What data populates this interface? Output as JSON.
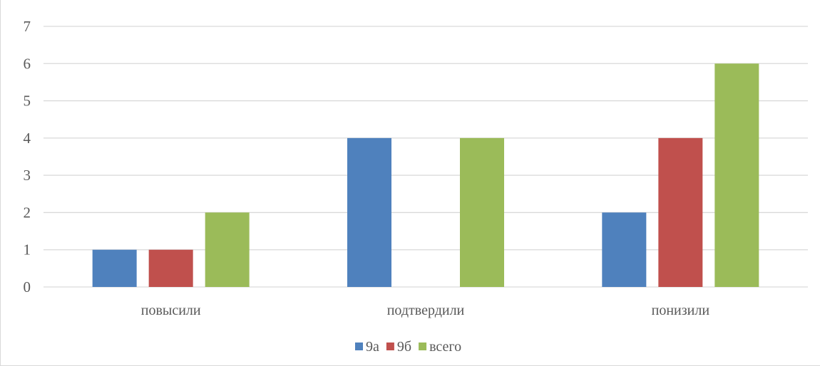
{
  "chart_data": {
    "type": "bar",
    "title": "",
    "xlabel": "",
    "ylabel": "",
    "categories": [
      "повысили",
      "подтвердили",
      "понизили"
    ],
    "series": [
      {
        "name": "9а",
        "values": [
          1,
          4,
          2
        ],
        "color": "#4f81bd"
      },
      {
        "name": "9б",
        "values": [
          1,
          0,
          4
        ],
        "color": "#c0504d"
      },
      {
        "name": "всего",
        "values": [
          2,
          4,
          6
        ],
        "color": "#9bbb59"
      }
    ],
    "ylim": [
      0,
      7
    ],
    "yticks": [
      0,
      1,
      2,
      3,
      4,
      5,
      6,
      7
    ],
    "grid": true,
    "legend": "bottom"
  }
}
